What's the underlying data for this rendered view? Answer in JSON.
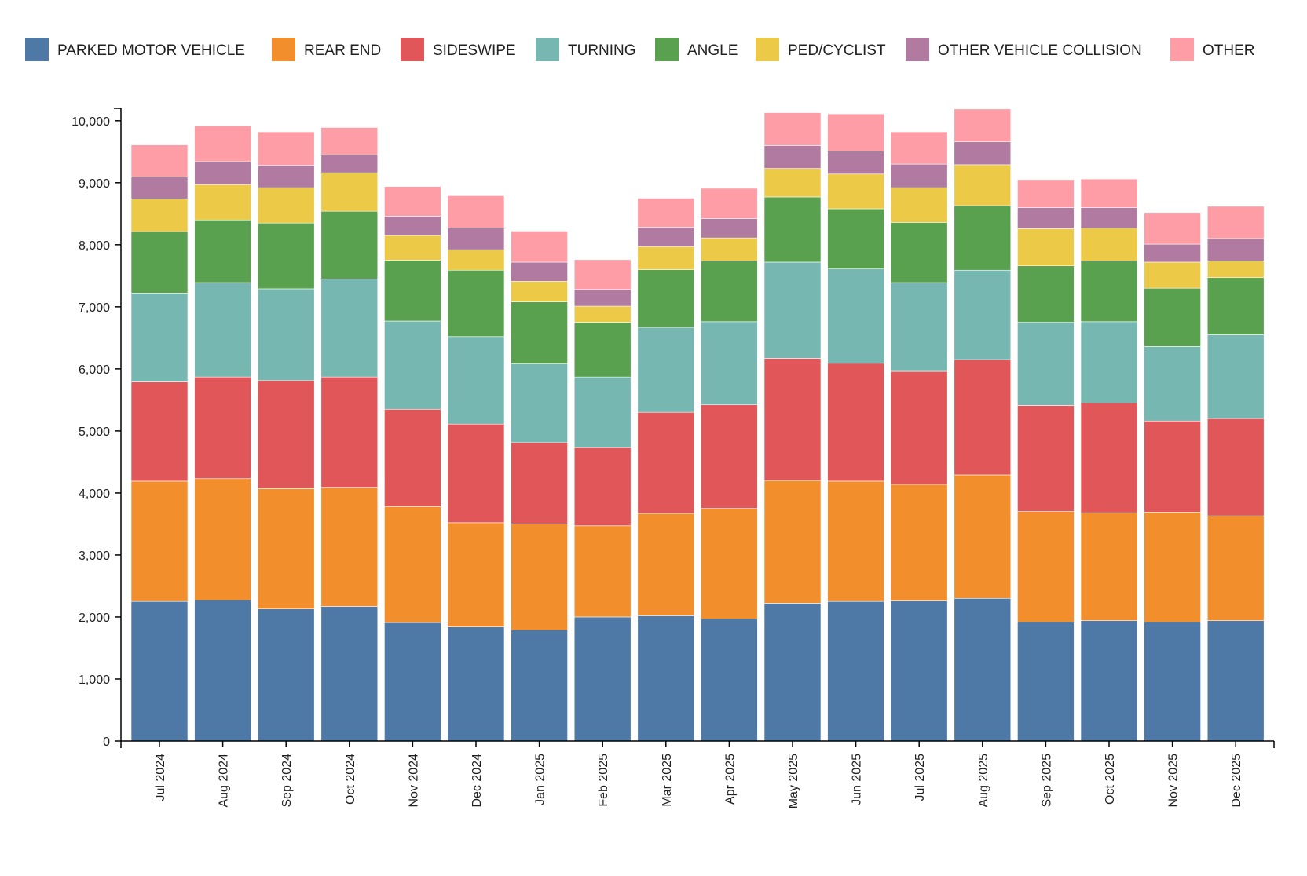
{
  "chart_data": {
    "type": "bar",
    "stacked": true,
    "title": "",
    "xlabel": "",
    "ylabel": "",
    "ylim": [
      0,
      10200
    ],
    "yticks": [
      0,
      1000,
      2000,
      3000,
      4000,
      5000,
      6000,
      7000,
      8000,
      9000,
      10000
    ],
    "ytick_labels": [
      "0",
      "1,000",
      "2,000",
      "3,000",
      "4,000",
      "5,000",
      "6,000",
      "7,000",
      "8,000",
      "9,000",
      "10,000"
    ],
    "legend_position": "top",
    "categories": [
      "Jul 2024",
      "Aug 2024",
      "Sep 2024",
      "Oct 2024",
      "Nov 2024",
      "Dec 2024",
      "Jan 2025",
      "Feb 2025",
      "Mar 2025",
      "Apr 2025",
      "May 2025",
      "Jun 2025",
      "Jul 2025",
      "Aug 2025",
      "Sep 2025",
      "Oct 2025",
      "Nov 2025",
      "Dec 2025"
    ],
    "series": [
      {
        "name": "PARKED MOTOR VEHICLE",
        "color": "#4e79a7",
        "values": [
          2250,
          2270,
          2130,
          2170,
          1910,
          1840,
          1790,
          2000,
          2020,
          1970,
          2220,
          2250,
          2260,
          2300,
          1920,
          1940,
          1920,
          1940
        ]
      },
      {
        "name": "REAR END",
        "color": "#f28e2b",
        "values": [
          1940,
          1960,
          1940,
          1910,
          1870,
          1680,
          1710,
          1470,
          1650,
          1780,
          1980,
          1940,
          1880,
          1990,
          1780,
          1740,
          1770,
          1690
        ]
      },
      {
        "name": "SIDESWIPE",
        "color": "#e15759",
        "values": [
          1600,
          1640,
          1740,
          1790,
          1570,
          1590,
          1310,
          1260,
          1630,
          1670,
          1970,
          1900,
          1820,
          1860,
          1710,
          1770,
          1470,
          1570
        ]
      },
      {
        "name": "TURNING",
        "color": "#76b7b2",
        "values": [
          1430,
          1520,
          1480,
          1580,
          1420,
          1410,
          1270,
          1140,
          1370,
          1340,
          1550,
          1520,
          1430,
          1440,
          1340,
          1310,
          1200,
          1350
        ]
      },
      {
        "name": "ANGLE",
        "color": "#59a14f",
        "values": [
          990,
          1010,
          1060,
          1090,
          980,
          1070,
          1000,
          880,
          930,
          980,
          1050,
          970,
          970,
          1040,
          910,
          980,
          940,
          920
        ]
      },
      {
        "name": "PED/CYCLIST",
        "color": "#edc948",
        "values": [
          530,
          570,
          570,
          620,
          400,
          330,
          330,
          260,
          370,
          370,
          460,
          560,
          560,
          660,
          600,
          530,
          420,
          270
        ]
      },
      {
        "name": "OTHER VEHICLE COLLISION",
        "color": "#b07aa1",
        "values": [
          350,
          370,
          360,
          290,
          310,
          350,
          310,
          270,
          310,
          310,
          370,
          370,
          380,
          370,
          340,
          330,
          290,
          360
        ]
      },
      {
        "name": "OTHER",
        "color": "#ff9da7",
        "values": [
          520,
          580,
          540,
          440,
          480,
          520,
          500,
          480,
          470,
          490,
          530,
          600,
          520,
          530,
          450,
          460,
          510,
          520
        ]
      }
    ]
  }
}
